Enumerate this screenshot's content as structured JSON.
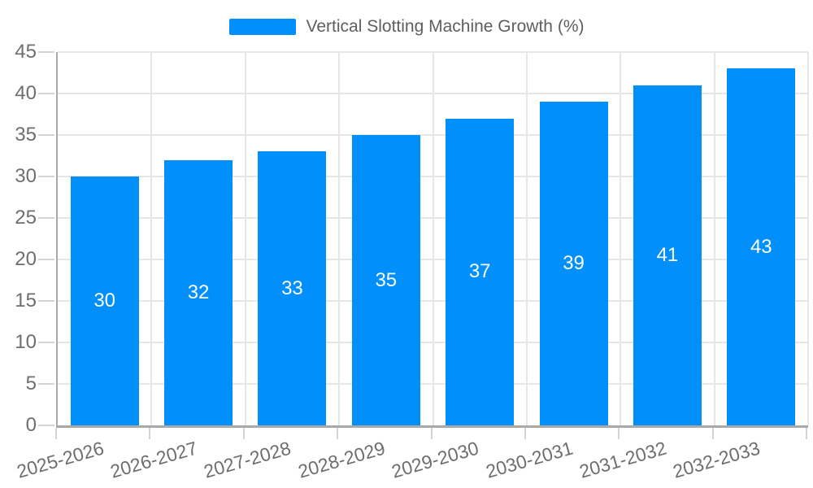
{
  "chart_data": {
    "type": "bar",
    "legend": "Vertical Slotting Machine Growth (%)",
    "legend_position": "top",
    "categories": [
      "2025-2026",
      "2026-2027",
      "2027-2028",
      "2028-2029",
      "2029-2030",
      "2030-2031",
      "2031-2032",
      "2032-2033"
    ],
    "values": [
      30,
      32,
      33,
      35,
      37,
      39,
      41,
      43
    ],
    "ylim": [
      0,
      45
    ],
    "yticks": [
      0,
      5,
      10,
      15,
      20,
      25,
      30,
      35,
      40,
      45
    ],
    "grid": {
      "horizontal": true,
      "vertical": true
    },
    "xlabel_rotation_deg": -16,
    "colors": {
      "bar": "#008FFB",
      "grid": "#e6e6e6",
      "axis_line": "#a9a9a9",
      "tick": "#d4d4d4",
      "axis_label_text": "#6e6e6e",
      "legend_text": "#5e5e5e",
      "value_label_text": "#ffffff",
      "background": "#ffffff"
    }
  }
}
